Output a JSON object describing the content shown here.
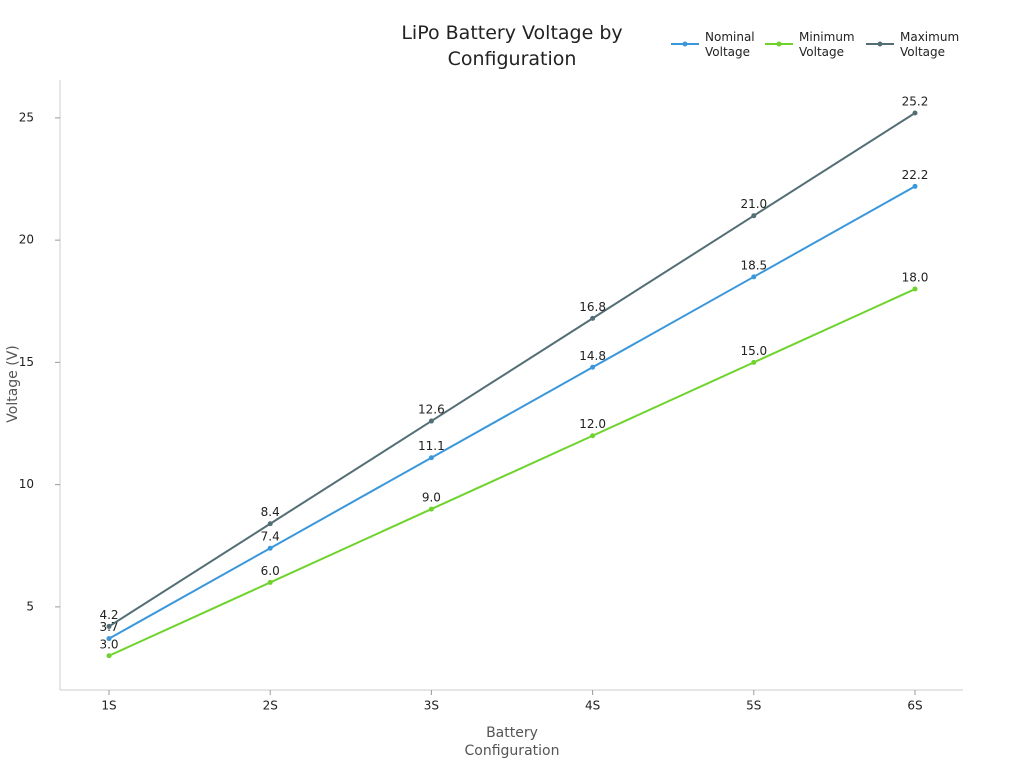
{
  "chart_data": {
    "type": "line",
    "title": "LiPo Battery Voltage by Configuration",
    "xlabel": "Battery Configuration",
    "ylabel": "Voltage (V)",
    "categories": [
      "1S",
      "2S",
      "3S",
      "4S",
      "5S",
      "6S"
    ],
    "series": [
      {
        "name": "Nominal Voltage",
        "color": "#3a97dc",
        "values": [
          3.7,
          7.4,
          11.1,
          14.8,
          18.5,
          22.2
        ],
        "value_labels": [
          "3.7",
          "7.4",
          "11.1",
          "14.8",
          "18.5",
          "22.2"
        ]
      },
      {
        "name": "Minimum Voltage",
        "color": "#6fd32e",
        "values": [
          3,
          6,
          9,
          12,
          15,
          18
        ],
        "value_labels": [
          "3.0",
          "6.0",
          "9.0",
          "12.0",
          "15.0",
          "18.0"
        ]
      },
      {
        "name": "Maximum Voltage",
        "color": "#546e76",
        "values": [
          4.2,
          8.4,
          12.6,
          16.8,
          21,
          25.2
        ],
        "value_labels": [
          "4.2",
          "8.4",
          "12.6",
          "16.8",
          "21.0",
          "25.2"
        ]
      }
    ],
    "ylim": [
      1.6,
      26.55
    ],
    "yticks": [
      5,
      10,
      15,
      20,
      25
    ],
    "legend": "upper right"
  }
}
